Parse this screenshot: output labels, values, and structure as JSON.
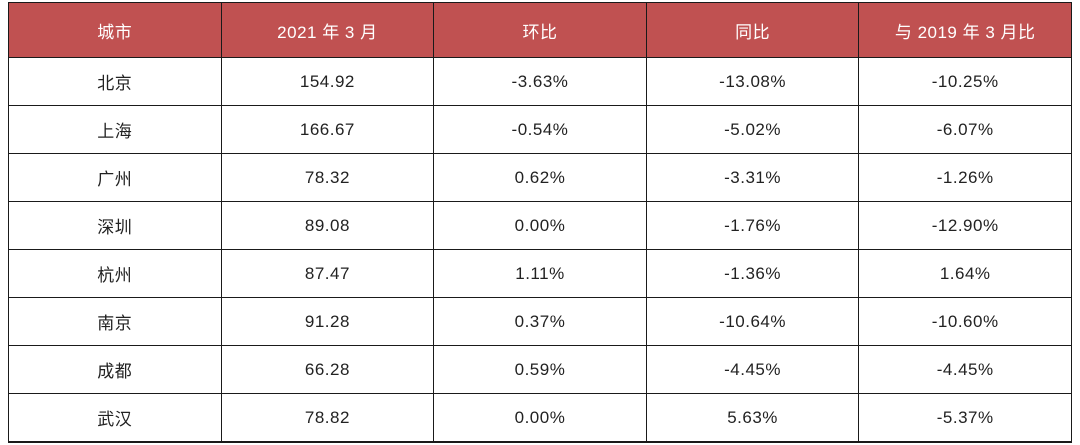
{
  "table": {
    "columns": [
      "城市",
      "2021 年 3 月",
      "环比",
      "同比",
      "与 2019 年 3 月比"
    ],
    "rows": [
      [
        "北京",
        "154.92",
        "-3.63%",
        "-13.08%",
        "-10.25%"
      ],
      [
        "上海",
        "166.67",
        "-0.54%",
        "-5.02%",
        "-6.07%"
      ],
      [
        "广州",
        "78.32",
        "0.62%",
        "-3.31%",
        "-1.26%"
      ],
      [
        "深圳",
        "89.08",
        "0.00%",
        "-1.76%",
        "-12.90%"
      ],
      [
        "杭州",
        "87.47",
        "1.11%",
        "-1.36%",
        "1.64%"
      ],
      [
        "南京",
        "91.28",
        "0.37%",
        "-10.64%",
        "-10.60%"
      ],
      [
        "成都",
        "66.28",
        "0.59%",
        "-4.45%",
        "-4.45%"
      ],
      [
        "武汉",
        "78.82",
        "0.00%",
        "5.63%",
        "-5.37%"
      ]
    ]
  },
  "colors": {
    "header_bg": "#c05151",
    "header_text": "#ffffff",
    "body_text": "#222222",
    "border": "#1a1a1a",
    "row_bg": "#ffffff"
  },
  "chart_data": {
    "type": "table",
    "title": "",
    "columns": [
      "城市",
      "2021 年 3 月",
      "环比",
      "同比",
      "与 2019 年 3 月比"
    ],
    "rows": [
      {
        "城市": "北京",
        "2021 年 3 月": 154.92,
        "环比": "-3.63%",
        "同比": "-13.08%",
        "与 2019 年 3 月比": "-10.25%"
      },
      {
        "城市": "上海",
        "2021 年 3 月": 166.67,
        "环比": "-0.54%",
        "同比": "-5.02%",
        "与 2019 年 3 月比": "-6.07%"
      },
      {
        "城市": "广州",
        "2021 年 3 月": 78.32,
        "环比": "0.62%",
        "同比": "-3.31%",
        "与 2019 年 3 月比": "-1.26%"
      },
      {
        "城市": "深圳",
        "2021 年 3 月": 89.08,
        "环比": "0.00%",
        "同比": "-1.76%",
        "与 2019 年 3 月比": "-12.90%"
      },
      {
        "城市": "杭州",
        "2021 年 3 月": 87.47,
        "环比": "1.11%",
        "同比": "-1.36%",
        "与 2019 年 3 月比": "1.64%"
      },
      {
        "城市": "南京",
        "2021 年 3 月": 91.28,
        "环比": "0.37%",
        "同比": "-10.64%",
        "与 2019 年 3 月比": "-10.60%"
      },
      {
        "城市": "成都",
        "2021 年 3 月": 66.28,
        "环比": "0.59%",
        "同比": "-4.45%",
        "与 2019 年 3 月比": "-4.45%"
      },
      {
        "城市": "武汉",
        "2021 年 3 月": 78.82,
        "环比": "0.00%",
        "同比": "5.63%",
        "与 2019 年 3 月比": "-5.37%"
      }
    ]
  }
}
